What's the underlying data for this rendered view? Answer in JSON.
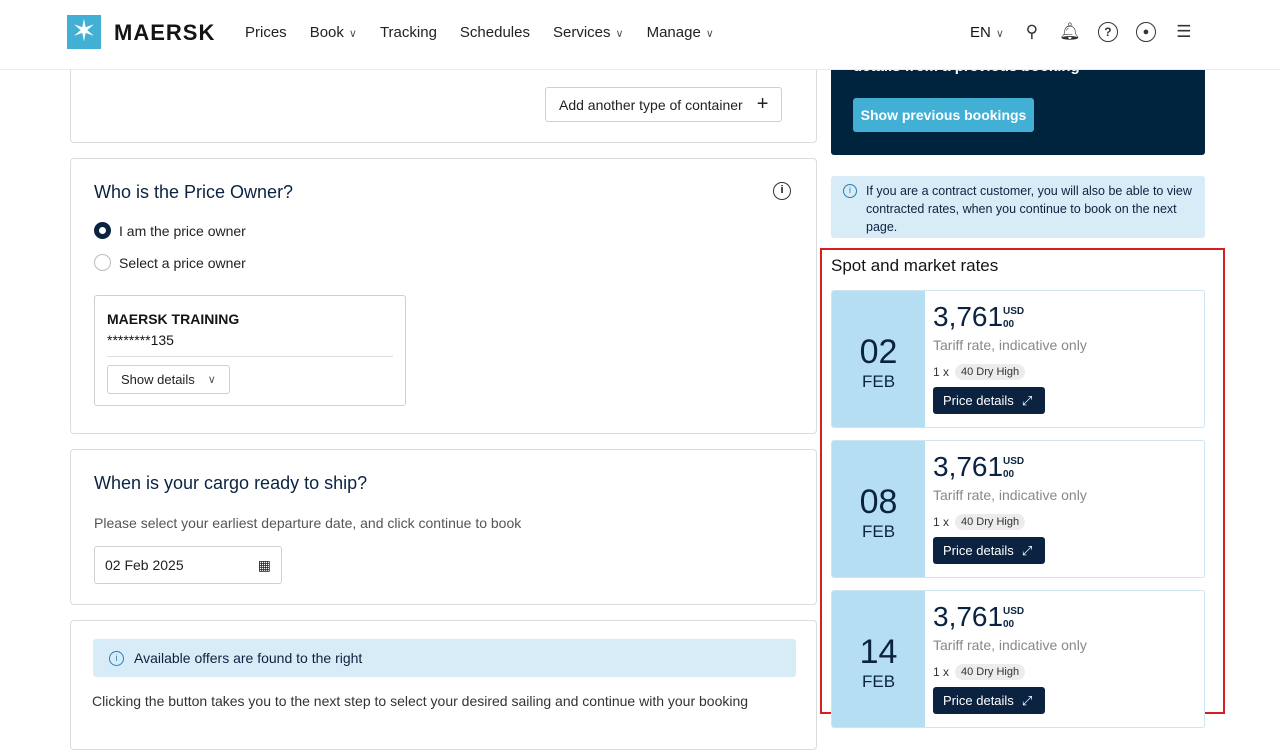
{
  "header": {
    "brand": "MAERSK",
    "nav": [
      {
        "label": "Prices",
        "dropdown": false
      },
      {
        "label": "Book",
        "dropdown": true
      },
      {
        "label": "Tracking",
        "dropdown": false
      },
      {
        "label": "Schedules",
        "dropdown": false
      },
      {
        "label": "Services",
        "dropdown": true
      },
      {
        "label": "Manage",
        "dropdown": true
      }
    ],
    "language": "EN"
  },
  "container": {
    "add_button": "Add another type of container"
  },
  "price_owner": {
    "title": "Who is the Price Owner?",
    "options": [
      {
        "label": "I am the price owner",
        "selected": true
      },
      {
        "label": "Select a price owner",
        "selected": false
      }
    ],
    "company": "MAERSK TRAINING",
    "account": "********135",
    "show_details": "Show details"
  },
  "cargo": {
    "title": "When is your cargo ready to ship?",
    "hint": "Please select your earliest departure date, and click continue to book",
    "date": "02 Feb 2025"
  },
  "offers": {
    "info": "Available offers are found to the right",
    "text": "Clicking the button takes you to the next step to select your desired sailing and continue with your booking"
  },
  "sidebar": {
    "previous_text": "details from a previous booking",
    "previous_button": "Show previous bookings",
    "contract_info": "If you are a contract customer, you will also be able to view contracted rates, when you continue to book on the next page.",
    "rates_title": "Spot and market rates",
    "rates": [
      {
        "day": "02",
        "month": "FEB",
        "amount": "3,761",
        "currency": "USD",
        "cents": "00",
        "note": "Tariff rate, indicative only",
        "qty": "1 x",
        "container": "40 Dry High",
        "button": "Price details"
      },
      {
        "day": "08",
        "month": "FEB",
        "amount": "3,761",
        "currency": "USD",
        "cents": "00",
        "note": "Tariff rate, indicative only",
        "qty": "1 x",
        "container": "40 Dry High",
        "button": "Price details"
      },
      {
        "day": "14",
        "month": "FEB",
        "amount": "3,761",
        "currency": "USD",
        "cents": "00",
        "note": "Tariff rate, indicative only",
        "qty": "1 x",
        "container": "40 Dry High",
        "button": "Price details"
      }
    ]
  },
  "colors": {
    "brand": "#42b0d5",
    "navy": "#0b2340",
    "highlight": "#d62020",
    "info_bg": "#d8ecf7"
  }
}
